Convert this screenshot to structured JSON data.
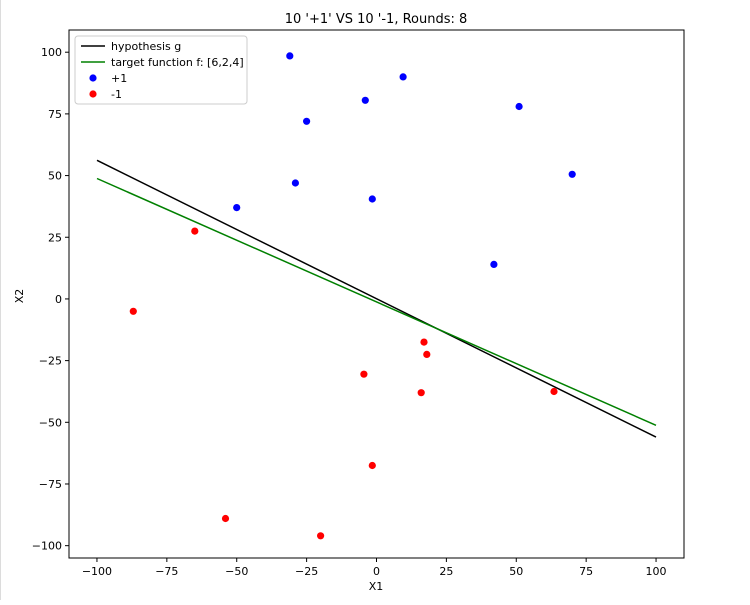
{
  "chart_data": {
    "type": "scatter",
    "title": "10 '+1' VS 10 '-1, Rounds: 8",
    "xlabel": "X1",
    "ylabel": "X2",
    "xlim": [
      -110,
      110
    ],
    "ylim": [
      -105,
      109
    ],
    "xticks": [
      -100,
      -75,
      -50,
      -25,
      0,
      25,
      50,
      75,
      100
    ],
    "xtick_labels": [
      "−100",
      "−75",
      "−50",
      "−25",
      "0",
      "25",
      "50",
      "75",
      "100"
    ],
    "yticks": [
      -100,
      -75,
      -50,
      -25,
      0,
      25,
      50,
      75,
      100
    ],
    "ytick_labels": [
      "−100",
      "−75",
      "−50",
      "−25",
      "0",
      "25",
      "50",
      "75",
      "100"
    ],
    "grid": false,
    "legend_position": "upper-left",
    "lines": [
      {
        "name": "hypothesis g",
        "color": "#000000",
        "x": [
          -100,
          100
        ],
        "y": [
          56.2,
          -56.0
        ]
      },
      {
        "name": "target function f: [6,2,4]",
        "color": "#008000",
        "x": [
          -100,
          100
        ],
        "y": [
          48.8,
          -51.2
        ]
      }
    ],
    "series": [
      {
        "name": "+1",
        "color": "#0000ff",
        "points": [
          {
            "x": -31,
            "y": 98.5
          },
          {
            "x": 9.5,
            "y": 90
          },
          {
            "x": -4,
            "y": 80.5
          },
          {
            "x": 51,
            "y": 78
          },
          {
            "x": -25,
            "y": 72
          },
          {
            "x": 70,
            "y": 50.5
          },
          {
            "x": -29,
            "y": 47
          },
          {
            "x": -1.5,
            "y": 40.5
          },
          {
            "x": -50,
            "y": 37
          },
          {
            "x": 42,
            "y": 14
          }
        ]
      },
      {
        "name": "-1",
        "color": "#ff0000",
        "points": [
          {
            "x": -65,
            "y": 27.5
          },
          {
            "x": -87,
            "y": -5
          },
          {
            "x": 17,
            "y": -17.5
          },
          {
            "x": 18,
            "y": -22.5
          },
          {
            "x": -4.5,
            "y": -30.5
          },
          {
            "x": 16,
            "y": -38
          },
          {
            "x": 63.5,
            "y": -37.5
          },
          {
            "x": -1.5,
            "y": -67.5
          },
          {
            "x": -54,
            "y": -89
          },
          {
            "x": -20,
            "y": -96
          }
        ]
      }
    ]
  }
}
